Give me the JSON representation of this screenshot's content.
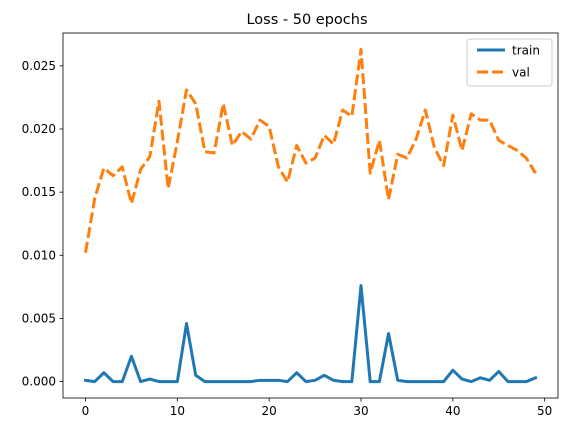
{
  "chart_data": {
    "type": "line",
    "title": "Loss - 50 epochs",
    "xlabel": "",
    "ylabel": "",
    "xlim": [
      -2.45,
      51.45
    ],
    "ylim": [
      -0.0013,
      0.0276
    ],
    "xticks": [
      0,
      10,
      20,
      30,
      40,
      50
    ],
    "xtick_labels": [
      "0",
      "10",
      "20",
      "30",
      "40",
      "50"
    ],
    "yticks": [
      0.0,
      0.005,
      0.01,
      0.015,
      0.02,
      0.025
    ],
    "ytick_labels": [
      "0.000",
      "0.005",
      "0.010",
      "0.015",
      "0.020",
      "0.025"
    ],
    "grid": false,
    "legend_position": "top-right",
    "x": [
      0,
      1,
      2,
      3,
      4,
      5,
      6,
      7,
      8,
      9,
      10,
      11,
      12,
      13,
      14,
      15,
      16,
      17,
      18,
      19,
      20,
      21,
      22,
      23,
      24,
      25,
      26,
      27,
      28,
      29,
      30,
      31,
      32,
      33,
      34,
      35,
      36,
      37,
      38,
      39,
      40,
      41,
      42,
      43,
      44,
      45,
      46,
      47,
      48,
      49
    ],
    "series": [
      {
        "name": "train",
        "color": "#1f77b4",
        "style": "solid",
        "values": [
          0.0001,
          0.0,
          0.0007,
          0.0,
          0.0,
          0.002,
          0.0,
          0.0002,
          0.0,
          0.0,
          0.0,
          0.0046,
          0.0005,
          0.0,
          0.0,
          0.0,
          0.0,
          0.0,
          0.0,
          0.0001,
          0.0001,
          0.0001,
          0.0,
          0.0007,
          0.0,
          0.0001,
          0.0005,
          0.0001,
          0.0,
          0.0,
          0.0076,
          0.0,
          0.0,
          0.0038,
          0.0001,
          0.0,
          0.0,
          0.0,
          0.0,
          0.0,
          0.0009,
          0.0002,
          0.0,
          0.0003,
          0.0001,
          0.0008,
          0.0,
          0.0,
          0.0,
          0.0003
        ]
      },
      {
        "name": "val",
        "color": "#ff7f0e",
        "style": "dashed",
        "values": [
          0.0102,
          0.0145,
          0.0169,
          0.0163,
          0.017,
          0.0141,
          0.0168,
          0.0178,
          0.0222,
          0.0153,
          0.019,
          0.0231,
          0.022,
          0.0182,
          0.0181,
          0.022,
          0.0187,
          0.0198,
          0.0192,
          0.0207,
          0.0202,
          0.017,
          0.0158,
          0.0187,
          0.0173,
          0.0177,
          0.0195,
          0.0188,
          0.0215,
          0.021,
          0.0263,
          0.0165,
          0.0191,
          0.0144,
          0.018,
          0.0177,
          0.0192,
          0.0215,
          0.0185,
          0.0171,
          0.0211,
          0.0183,
          0.0212,
          0.0207,
          0.0207,
          0.0191,
          0.0187,
          0.0183,
          0.0177,
          0.0165
        ]
      }
    ]
  }
}
